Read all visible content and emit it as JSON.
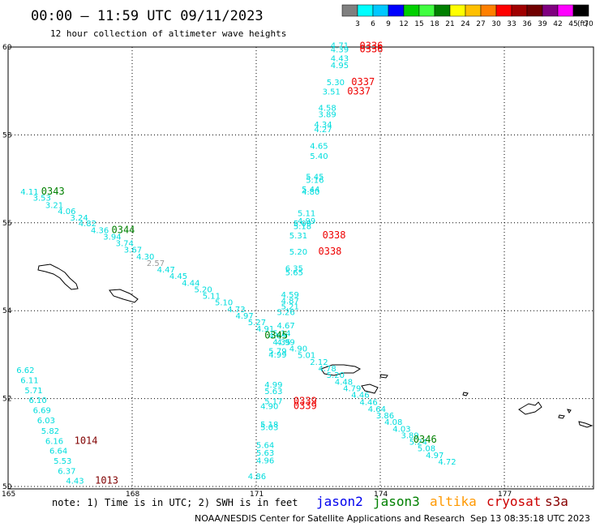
{
  "header": {
    "title": "00:00 – 11:59 UTC 09/11/2023",
    "subtitle": "12 hour collection of altimeter wave heights"
  },
  "color_scale": {
    "labels": [
      "3",
      "6",
      "9",
      "12",
      "15",
      "18",
      "21",
      "24",
      "27",
      "30",
      "33",
      "36",
      "39",
      "42",
      "45",
      "70"
    ],
    "unit": "(ft)",
    "colors": [
      "#808080",
      "#00ffff",
      "#00c8ff",
      "#0000ff",
      "#00d000",
      "#40ff40",
      "#008000",
      "#ffff00",
      "#ffc000",
      "#ff8000",
      "#ff0000",
      "#a00000",
      "#700000",
      "#800080",
      "#ff00ff",
      "#000000"
    ]
  },
  "axes": {
    "lat_labels": [
      "60",
      "58",
      "56",
      "54",
      "52",
      "50"
    ],
    "lon_labels": [
      "165",
      "168",
      "171",
      "174",
      "177"
    ]
  },
  "observations": [
    {
      "id": "o1",
      "text": "4.11",
      "lon": 165.3,
      "lat": 56.64,
      "color": "#00dddd"
    },
    {
      "id": "o2",
      "text": "3.53",
      "lon": 165.6,
      "lat": 56.5,
      "color": "#00dddd"
    },
    {
      "id": "o3",
      "text": "3.21",
      "lon": 165.9,
      "lat": 56.34,
      "color": "#00dddd"
    },
    {
      "id": "o4",
      "text": "4.06",
      "lon": 166.2,
      "lat": 56.2,
      "color": "#00dddd"
    },
    {
      "id": "o5",
      "text": "3.24",
      "lon": 166.5,
      "lat": 56.05,
      "color": "#00dddd"
    },
    {
      "id": "o6",
      "text": "4.82",
      "lon": 166.7,
      "lat": 55.92,
      "color": "#00dddd"
    },
    {
      "id": "o7",
      "text": "4.36",
      "lon": 167.0,
      "lat": 55.77,
      "color": "#00dddd"
    },
    {
      "id": "o8",
      "text": "3.94",
      "lon": 167.3,
      "lat": 55.62,
      "color": "#00dddd"
    },
    {
      "id": "o9",
      "text": "3.74",
      "lon": 167.6,
      "lat": 55.47,
      "color": "#00dddd"
    },
    {
      "id": "o10",
      "text": "3.67",
      "lon": 167.8,
      "lat": 55.32,
      "color": "#00dddd"
    },
    {
      "id": "o11",
      "text": "4.30",
      "lon": 168.1,
      "lat": 55.17,
      "color": "#00dddd"
    },
    {
      "id": "o12",
      "text": "2.57",
      "lon": 168.35,
      "lat": 55.02,
      "color": "#999999"
    },
    {
      "id": "o13",
      "text": "4.47",
      "lon": 168.6,
      "lat": 54.87,
      "color": "#00dddd"
    },
    {
      "id": "o14",
      "text": "4.45",
      "lon": 168.9,
      "lat": 54.72,
      "color": "#00dddd"
    },
    {
      "id": "o15",
      "text": "4.44",
      "lon": 169.2,
      "lat": 54.57,
      "color": "#00dddd"
    },
    {
      "id": "o16",
      "text": "5.20",
      "lon": 169.5,
      "lat": 54.42,
      "color": "#00dddd"
    },
    {
      "id": "o17",
      "text": "5.11",
      "lon": 169.7,
      "lat": 54.27,
      "color": "#00dddd"
    },
    {
      "id": "o18",
      "text": "5.10",
      "lon": 170.0,
      "lat": 54.12,
      "color": "#00dddd"
    },
    {
      "id": "o19",
      "text": "4.73",
      "lon": 170.3,
      "lat": 53.97,
      "color": "#00dddd"
    },
    {
      "id": "o20",
      "text": "4.97",
      "lon": 170.5,
      "lat": 53.82,
      "color": "#00dddd"
    },
    {
      "id": "o21",
      "text": "5.27",
      "lon": 170.8,
      "lat": 53.67,
      "color": "#00dddd"
    },
    {
      "id": "o22",
      "text": "4.91",
      "lon": 171.0,
      "lat": 53.52,
      "color": "#00dddd"
    },
    {
      "id": "o23",
      "text": "4.69",
      "lon": 171.3,
      "lat": 53.37,
      "color": "#00dddd"
    },
    {
      "id": "o24",
      "text": "4.99",
      "lon": 171.5,
      "lat": 53.22,
      "color": "#00dddd"
    },
    {
      "id": "o25",
      "text": "4.90",
      "lon": 171.8,
      "lat": 53.07,
      "color": "#00dddd"
    },
    {
      "id": "o26",
      "text": "5.01",
      "lon": 172.0,
      "lat": 52.92,
      "color": "#00dddd"
    },
    {
      "id": "o27",
      "text": "2.12",
      "lon": 172.3,
      "lat": 52.77,
      "color": "#00dddd"
    },
    {
      "id": "o28",
      "text": "4.78",
      "lon": 172.5,
      "lat": 52.62,
      "color": "#00dddd"
    },
    {
      "id": "o29",
      "text": "5.20",
      "lon": 172.7,
      "lat": 52.47,
      "color": "#00dddd"
    },
    {
      "id": "o30",
      "text": "4.48",
      "lon": 172.9,
      "lat": 52.32,
      "color": "#00dddd"
    },
    {
      "id": "o31",
      "text": "4.79",
      "lon": 173.1,
      "lat": 52.17,
      "color": "#00dddd"
    },
    {
      "id": "o32",
      "text": "4.46",
      "lon": 173.3,
      "lat": 52.02,
      "color": "#00dddd"
    },
    {
      "id": "o33",
      "text": "4.46",
      "lon": 173.5,
      "lat": 51.85,
      "color": "#00dddd"
    },
    {
      "id": "o34",
      "text": "4.64",
      "lon": 173.7,
      "lat": 51.7,
      "color": "#00dddd"
    },
    {
      "id": "o35",
      "text": "3.86",
      "lon": 173.9,
      "lat": 51.55,
      "color": "#00dddd"
    },
    {
      "id": "o36",
      "text": "4.08",
      "lon": 174.1,
      "lat": 51.4,
      "color": "#00dddd"
    },
    {
      "id": "o37",
      "text": "4.03",
      "lon": 174.3,
      "lat": 51.25,
      "color": "#00dddd"
    },
    {
      "id": "o38",
      "text": "3.89",
      "lon": 174.5,
      "lat": 51.1,
      "color": "#00dddd"
    },
    {
      "id": "o39",
      "text": "5.24",
      "lon": 174.7,
      "lat": 50.95,
      "color": "#00dddd"
    },
    {
      "id": "o40",
      "text": "5.08",
      "lon": 174.9,
      "lat": 50.8,
      "color": "#00dddd"
    },
    {
      "id": "o41",
      "text": "4.97",
      "lon": 175.1,
      "lat": 50.65,
      "color": "#00dddd"
    },
    {
      "id": "o42",
      "text": "4.72",
      "lon": 175.4,
      "lat": 50.5,
      "color": "#00dddd"
    },
    {
      "id": "o43",
      "text": "4.71",
      "lon": 172.8,
      "lat": 59.97,
      "color": "#00dddd"
    },
    {
      "id": "o44",
      "text": "4.39",
      "lon": 172.8,
      "lat": 59.88,
      "color": "#00dddd"
    },
    {
      "id": "o45",
      "text": "4.43",
      "lon": 172.8,
      "lat": 59.68,
      "color": "#00dddd"
    },
    {
      "id": "o46",
      "text": "4.95",
      "lon": 172.8,
      "lat": 59.52,
      "color": "#00dddd"
    },
    {
      "id": "o47",
      "text": "5.30",
      "lon": 172.7,
      "lat": 59.13,
      "color": "#00dddd"
    },
    {
      "id": "o48",
      "text": "3.51",
      "lon": 172.6,
      "lat": 58.92,
      "color": "#00dddd"
    },
    {
      "id": "o49",
      "text": "4.58",
      "lon": 172.5,
      "lat": 58.55,
      "color": "#00dddd"
    },
    {
      "id": "o50",
      "text": "3.89",
      "lon": 172.5,
      "lat": 58.4,
      "color": "#00dddd"
    },
    {
      "id": "o51",
      "text": "4.34",
      "lon": 172.4,
      "lat": 58.17,
      "color": "#00dddd"
    },
    {
      "id": "o52",
      "text": "4.27",
      "lon": 172.4,
      "lat": 58.06,
      "color": "#00dddd"
    },
    {
      "id": "o53",
      "text": "4.65",
      "lon": 172.3,
      "lat": 57.68,
      "color": "#00dddd"
    },
    {
      "id": "o54",
      "text": "5.40",
      "lon": 172.3,
      "lat": 57.45,
      "color": "#00dddd"
    },
    {
      "id": "o55",
      "text": "5.45",
      "lon": 172.2,
      "lat": 56.98,
      "color": "#00dddd"
    },
    {
      "id": "o56",
      "text": "5.16",
      "lon": 172.2,
      "lat": 56.91,
      "color": "#00dddd"
    },
    {
      "id": "o57",
      "text": "5.44",
      "lon": 172.1,
      "lat": 56.7,
      "color": "#00dddd"
    },
    {
      "id": "o58",
      "text": "4.80",
      "lon": 172.1,
      "lat": 56.64,
      "color": "#00dddd"
    },
    {
      "id": "o59",
      "text": "5.11",
      "lon": 172.0,
      "lat": 56.15,
      "color": "#00dddd"
    },
    {
      "id": "o60",
      "text": "4.99",
      "lon": 172.0,
      "lat": 55.98,
      "color": "#00dddd"
    },
    {
      "id": "o61",
      "text": "5.09",
      "lon": 171.9,
      "lat": 55.92,
      "color": "#00dddd"
    },
    {
      "id": "o62",
      "text": "5.18",
      "lon": 171.9,
      "lat": 55.86,
      "color": "#00dddd"
    },
    {
      "id": "o63",
      "text": "5.31",
      "lon": 171.8,
      "lat": 55.65,
      "color": "#00dddd"
    },
    {
      "id": "o64",
      "text": "5.20",
      "lon": 171.8,
      "lat": 55.28,
      "color": "#00dddd"
    },
    {
      "id": "o65",
      "text": "6.35",
      "lon": 171.7,
      "lat": 54.9,
      "color": "#00dddd"
    },
    {
      "id": "o66",
      "text": "5.65",
      "lon": 171.7,
      "lat": 54.81,
      "color": "#00dddd"
    },
    {
      "id": "o67",
      "text": "4.59",
      "lon": 171.6,
      "lat": 54.3,
      "color": "#00dddd"
    },
    {
      "id": "o68",
      "text": "4.87",
      "lon": 171.6,
      "lat": 54.16,
      "color": "#00dddd"
    },
    {
      "id": "o69",
      "text": "5.21",
      "lon": 171.6,
      "lat": 54.03,
      "color": "#00dddd"
    },
    {
      "id": "o70",
      "text": "5.26",
      "lon": 171.5,
      "lat": 53.9,
      "color": "#00dddd"
    },
    {
      "id": "o71",
      "text": "4.67",
      "lon": 171.5,
      "lat": 53.6,
      "color": "#00dddd"
    },
    {
      "id": "o72",
      "text": "5.14",
      "lon": 171.4,
      "lat": 53.42,
      "color": "#00dddd"
    },
    {
      "id": "o73",
      "text": "4.35",
      "lon": 171.4,
      "lat": 53.22,
      "color": "#00dddd"
    },
    {
      "id": "o74",
      "text": "5.79",
      "lon": 171.3,
      "lat": 53.02,
      "color": "#00dddd"
    },
    {
      "id": "o75",
      "text": "4.99",
      "lon": 171.3,
      "lat": 52.93,
      "color": "#00dddd"
    },
    {
      "id": "o76",
      "text": "4.99",
      "lon": 171.2,
      "lat": 52.25,
      "color": "#00dddd"
    },
    {
      "id": "o77",
      "text": "5.63",
      "lon": 171.2,
      "lat": 52.1,
      "color": "#00dddd"
    },
    {
      "id": "o78",
      "text": "5.17",
      "lon": 171.2,
      "lat": 51.87,
      "color": "#00dddd"
    },
    {
      "id": "o79",
      "text": "4.90",
      "lon": 171.1,
      "lat": 51.76,
      "color": "#00dddd"
    },
    {
      "id": "o80",
      "text": "5.18",
      "lon": 171.1,
      "lat": 51.35,
      "color": "#00dddd"
    },
    {
      "id": "o81",
      "text": "5.03",
      "lon": 171.1,
      "lat": 51.28,
      "color": "#00dddd"
    },
    {
      "id": "o82",
      "text": "5.64",
      "lon": 171.0,
      "lat": 50.88,
      "color": "#00dddd"
    },
    {
      "id": "o83",
      "text": "5.63",
      "lon": 171.0,
      "lat": 50.7,
      "color": "#00dddd"
    },
    {
      "id": "o84",
      "text": "4.96",
      "lon": 171.0,
      "lat": 50.53,
      "color": "#00dddd"
    },
    {
      "id": "o85",
      "text": "4.86",
      "lon": 170.8,
      "lat": 50.17,
      "color": "#00dddd"
    },
    {
      "id": "o86",
      "text": "6.62",
      "lon": 165.2,
      "lat": 52.58,
      "color": "#00dddd"
    },
    {
      "id": "o87",
      "text": "6.11",
      "lon": 165.3,
      "lat": 52.35,
      "color": "#00dddd"
    },
    {
      "id": "o88",
      "text": "5.71",
      "lon": 165.4,
      "lat": 52.12,
      "color": "#00dddd"
    },
    {
      "id": "o89",
      "text": "6.10",
      "lon": 165.5,
      "lat": 51.9,
      "color": "#00dddd"
    },
    {
      "id": "o90",
      "text": "6.69",
      "lon": 165.6,
      "lat": 51.67,
      "color": "#00dddd"
    },
    {
      "id": "o91",
      "text": "6.03",
      "lon": 165.7,
      "lat": 51.44,
      "color": "#00dddd"
    },
    {
      "id": "o92",
      "text": "5.82",
      "lon": 165.8,
      "lat": 51.2,
      "color": "#00dddd"
    },
    {
      "id": "o93",
      "text": "6.16",
      "lon": 165.9,
      "lat": 50.97,
      "color": "#00dddd"
    },
    {
      "id": "o94",
      "text": "6.64",
      "lon": 166.0,
      "lat": 50.75,
      "color": "#00dddd"
    },
    {
      "id": "o95",
      "text": "5.53",
      "lon": 166.1,
      "lat": 50.52,
      "color": "#00dddd"
    },
    {
      "id": "o96",
      "text": "6.37",
      "lon": 166.2,
      "lat": 50.29,
      "color": "#00dddd"
    },
    {
      "id": "o97",
      "text": "4.43",
      "lon": 166.4,
      "lat": 50.06,
      "color": "#00dddd"
    }
  ],
  "pass_times": [
    {
      "text": "0336",
      "lon": 173.5,
      "lat": 59.95,
      "color": "#ee0000"
    },
    {
      "text": "0336",
      "lon": 173.5,
      "lat": 59.88,
      "color": "#ee0000"
    },
    {
      "text": "0337",
      "lon": 173.3,
      "lat": 59.13,
      "color": "#ee0000"
    },
    {
      "text": "0337",
      "lon": 173.2,
      "lat": 58.92,
      "color": "#ee0000"
    },
    {
      "text": "0338",
      "lon": 172.6,
      "lat": 55.65,
      "color": "#ee0000"
    },
    {
      "text": "0338",
      "lon": 172.5,
      "lat": 55.28,
      "color": "#ee0000"
    },
    {
      "text": "0339",
      "lon": 171.9,
      "lat": 51.87,
      "color": "#ee0000"
    },
    {
      "text": "0339",
      "lon": 171.9,
      "lat": 51.76,
      "color": "#ee0000"
    },
    {
      "text": "0343",
      "lon": 165.8,
      "lat": 56.64,
      "color": "#008000"
    },
    {
      "text": "0344",
      "lon": 167.5,
      "lat": 55.77,
      "color": "#008000"
    },
    {
      "text": "0345",
      "lon": 171.2,
      "lat": 53.37,
      "color": "#008000"
    },
    {
      "text": "0346",
      "lon": 174.8,
      "lat": 51.0,
      "color": "#008000"
    },
    {
      "text": "1014",
      "lon": 166.6,
      "lat": 50.97,
      "color": "#800000"
    },
    {
      "text": "1013",
      "lon": 167.1,
      "lat": 50.06,
      "color": "#800000"
    }
  ],
  "note": "note: 1) Time is in UTC; 2) SWH is in feet",
  "missions": [
    {
      "name": "jason2",
      "color": "#0000ee"
    },
    {
      "name": "jason3",
      "color": "#008000"
    },
    {
      "name": "altika",
      "color": "#ff9900"
    },
    {
      "name": "cryosat",
      "color": "#cc0000"
    },
    {
      "name": "s3a",
      "color": "#880000"
    }
  ],
  "footer": {
    "source": "NOAA/NESDIS Center for Satellite Applications and Research",
    "timestamp": "Sep 13 08:35:18 UTC 2023"
  }
}
